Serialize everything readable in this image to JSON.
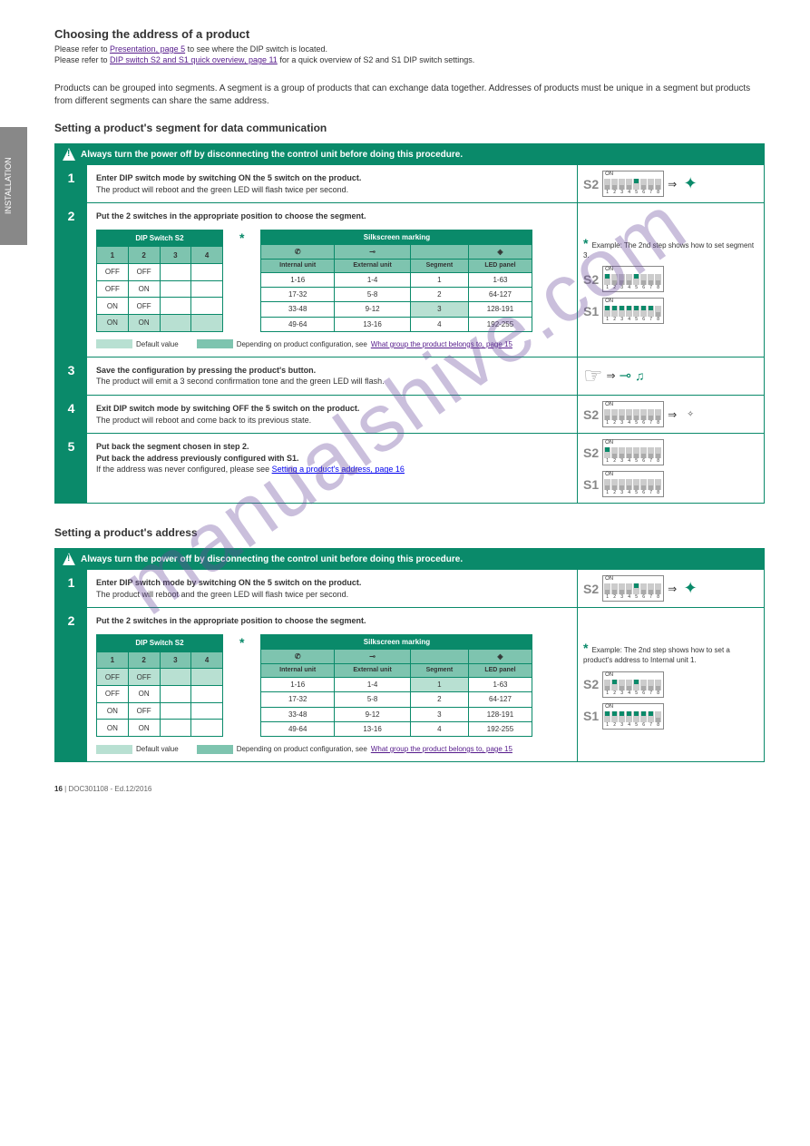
{
  "sidetab": "INSTALLATION",
  "header": {
    "title": "Choosing the address of a product",
    "crumb1_pre": "Please refer to ",
    "crumb1_link": "Presentation, page 5",
    "crumb1_post": " to see where the DIP switch is located.",
    "crumb2_pre": "Please refer to ",
    "crumb2_link": "DIP switch S2 and S1 quick overview, page 11",
    "crumb2_post": " for a quick overview of S2 and S1 DIP switch settings."
  },
  "intro": "Products can be grouped into segments. A segment is a group of products that can exchange data together. Addresses of products must be unique in a segment but products from different segments can share the same address.",
  "section1_title": "Setting a product's segment for data communication",
  "proc1": {
    "head": "Always turn the power off by disconnecting the control unit before doing this procedure.",
    "step1": {
      "text": "Enter DIP switch mode by switching ON the 5 switch on the product.",
      "sub": "The product will reboot and the green LED will flash twice per second.",
      "dip_s2": [
        0,
        0,
        0,
        0,
        1,
        0,
        0,
        0
      ]
    },
    "step2": {
      "text": "Put the 2 switches in the appropriate position to choose the segment.",
      "star_text": "Example: The 2nd step shows how to set segment 3.",
      "tbl_l": {
        "header": "DIP Switch S2",
        "cols": [
          "1",
          "2",
          "3",
          "4"
        ],
        "rows": [
          [
            "OFF",
            "OFF",
            "",
            ""
          ],
          [
            "OFF",
            "ON",
            "",
            ""
          ],
          [
            "ON",
            "OFF",
            "",
            ""
          ],
          [
            "ON",
            "ON",
            "",
            ""
          ]
        ],
        "hl_row": 3
      },
      "tbl_r": {
        "header": "Silkscreen marking",
        "icons": [
          "phone",
          "key",
          "blank",
          "led"
        ],
        "cols_sub": [
          "Internal unit",
          "External unit",
          "Segment",
          "LED panel"
        ],
        "rows": [
          [
            "1-16",
            "1-4",
            "1",
            "1-63"
          ],
          [
            "17-32",
            "5-8",
            "2",
            "64-127"
          ],
          [
            "33-48",
            "9-12",
            "3",
            "128-191"
          ],
          [
            "49-64",
            "13-16",
            "4",
            "192-255"
          ]
        ],
        "hl_col": 2,
        "hl_row": 2
      },
      "legend": [
        {
          "color": "lb1",
          "label": "Default value"
        },
        {
          "color": "lb2",
          "label": "Depending on product configuration, see"
        }
      ],
      "legend_link": "What group the product belongs to, page 15",
      "dip_s2": [
        1,
        0,
        0,
        0,
        1,
        0,
        0,
        0
      ],
      "dip_s1": [
        1,
        1,
        1,
        1,
        1,
        1,
        1,
        0
      ]
    },
    "step3": {
      "text": "Save the configuration by pressing the product's button.",
      "sub": "The product will emit a 3 second confirmation tone and the green LED will flash."
    },
    "step4": {
      "text": "Exit DIP switch mode by switching OFF the 5 switch on the product.",
      "sub": "The product will reboot and come back to its previous state.",
      "dip_s2": [
        0,
        0,
        0,
        0,
        0,
        0,
        0,
        0
      ]
    },
    "step5": {
      "text1": "Put back the segment chosen in step 2.",
      "text2": "Put back the address previously configured with S1.",
      "link_pre": "If the address was never configured, please see ",
      "link": "Setting a product's address, page 16",
      "dip_s2": [
        1,
        0,
        0,
        0,
        0,
        0,
        0,
        0
      ],
      "dip_s1": [
        0,
        0,
        0,
        0,
        0,
        0,
        0,
        0
      ]
    }
  },
  "section2_title": "Setting a product's address",
  "proc2": {
    "head": "Always turn the power off by disconnecting the control unit before doing this procedure.",
    "step1": {
      "text": "Enter DIP switch mode by switching ON the 5 switch on the product.",
      "sub": "The product will reboot and the green LED will flash twice per second.",
      "dip_s2": [
        0,
        0,
        0,
        0,
        1,
        0,
        0,
        0
      ]
    },
    "step2": {
      "text": "Put the 2 switches in the appropriate position to choose the segment.",
      "star_text": "Example: The 2nd step shows how to set a product's address to Internal unit 1.",
      "tbl_l": {
        "header": "DIP Switch S2",
        "cols": [
          "1",
          "2",
          "3",
          "4"
        ],
        "rows": [
          [
            "OFF",
            "OFF",
            "",
            ""
          ],
          [
            "OFF",
            "ON",
            "",
            ""
          ],
          [
            "ON",
            "OFF",
            "",
            ""
          ],
          [
            "ON",
            "ON",
            "",
            ""
          ]
        ],
        "hl_row": 0
      },
      "tbl_r": {
        "header": "Silkscreen marking",
        "cols_sub": [
          "Internal unit",
          "External unit",
          "Segment",
          "LED panel"
        ],
        "rows": [
          [
            "1-16",
            "1-4",
            "1",
            "1-63"
          ],
          [
            "17-32",
            "5-8",
            "2",
            "64-127"
          ],
          [
            "33-48",
            "9-12",
            "3",
            "128-191"
          ],
          [
            "49-64",
            "13-16",
            "4",
            "192-255"
          ]
        ],
        "hl_col": 2,
        "hl_row": 0
      },
      "legend": [
        {
          "color": "lb1",
          "label": "Default value"
        },
        {
          "color": "lb2",
          "label": "Depending on product configuration, see"
        }
      ],
      "legend_link": "What group the product belongs to, page 15",
      "dip_s2": [
        0,
        1,
        0,
        0,
        1,
        0,
        0,
        0
      ],
      "dip_s1": [
        1,
        1,
        1,
        1,
        1,
        1,
        1,
        0
      ]
    }
  },
  "footer": {
    "page": "16",
    "doc": "DOC301108 - Ed.12/2016"
  },
  "watermark": "manualshive.com"
}
